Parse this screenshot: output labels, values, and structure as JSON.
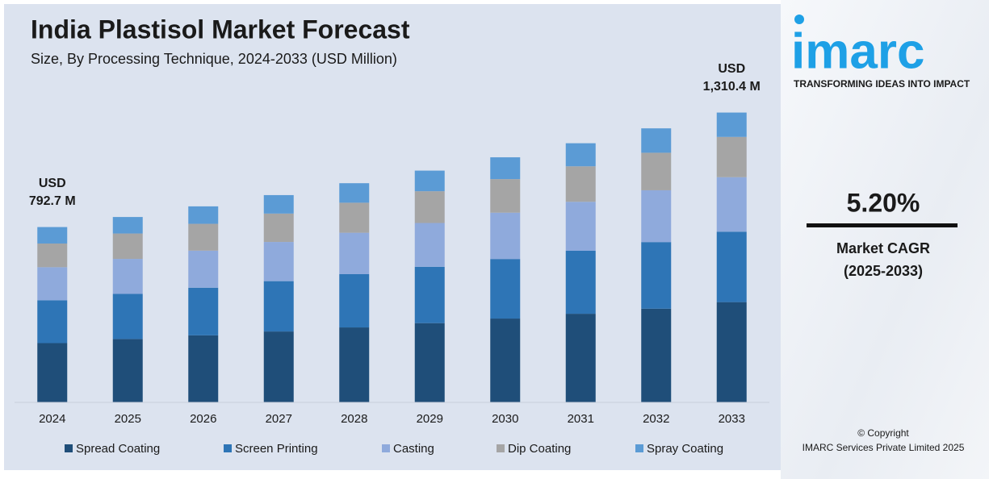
{
  "chart_data": {
    "type": "stacked_bar",
    "title": "India Plastisol Market Forecast",
    "subtitle": "Size, By Processing Technique, 2024-2033 (USD Million)",
    "categories": [
      "2024",
      "2025",
      "2026",
      "2027",
      "2028",
      "2029",
      "2030",
      "2031",
      "2032",
      "2033"
    ],
    "series": [
      {
        "name": "Spread Coating",
        "color": "#1f4e79",
        "values": [
          268.0,
          286.7,
          303.1,
          320.5,
          338.9,
          358.4,
          379.0,
          400.7,
          423.7,
          453.4
        ]
      },
      {
        "name": "Screen Printing",
        "color": "#2e75b6",
        "values": [
          193.4,
          203.7,
          215.4,
          227.7,
          240.8,
          254.6,
          269.3,
          284.7,
          301.1,
          318.4
        ]
      },
      {
        "name": "Casting",
        "color": "#8faadc",
        "values": [
          149.8,
          158.4,
          167.5,
          177.1,
          187.3,
          198.1,
          209.4,
          221.5,
          234.2,
          246.4
        ]
      },
      {
        "name": "Dip Coating",
        "color": "#a5a5a5",
        "values": [
          107.1,
          114.8,
          121.4,
          128.4,
          135.8,
          143.6,
          151.8,
          160.5,
          169.7,
          182.1
        ]
      },
      {
        "name": "Spray Coating",
        "color": "#5b9bd5",
        "values": [
          74.4,
          74.6,
          78.9,
          83.5,
          88.2,
          93.2,
          98.6,
          104.3,
          110.3,
          110.1
        ]
      }
    ],
    "ylim": [
      0,
      1400
    ],
    "annotations": [
      {
        "x": "2024",
        "lines": [
          "USD",
          "792.7 M"
        ]
      },
      {
        "x": "2033",
        "lines": [
          "USD",
          "1,310.4 M"
        ]
      }
    ]
  },
  "sidebar": {
    "logo": "imarc",
    "tagline": "TRANSFORMING IDEAS INTO IMPACT",
    "cagr_value": "5.20%",
    "cagr_label": "Market CAGR",
    "cagr_period": "(2025-2033)",
    "copyright": "© Copyright",
    "company": "IMARC Services Private Limited 2025"
  }
}
